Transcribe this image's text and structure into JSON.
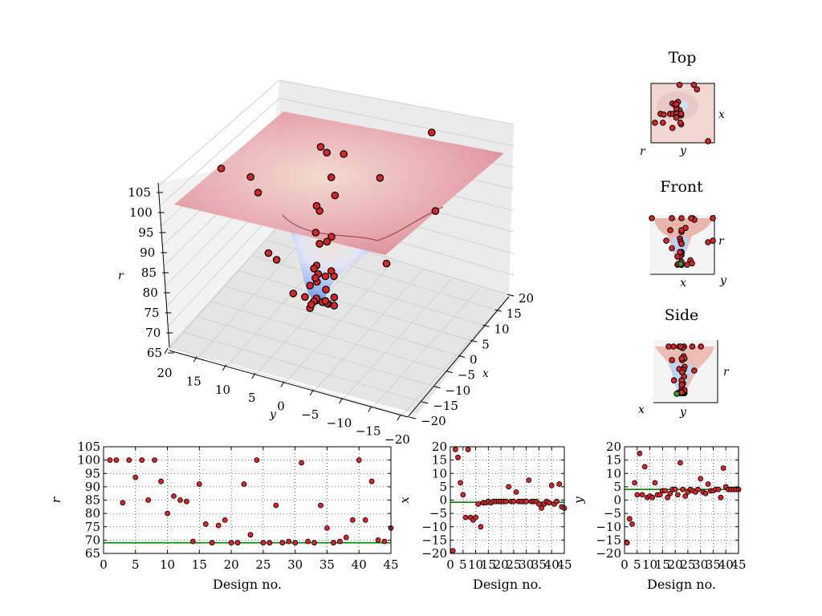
{
  "colors": {
    "point_fill": "#d62728",
    "point_edge": "#000000",
    "best_line": "#008000",
    "best_point": "#2ca02c",
    "plane": "#e8a0a8",
    "surface_high": "#f6d8c8",
    "surface_low": "#7ea4f0",
    "grid": "#bfbfbf",
    "pane": "#f2f2f2"
  },
  "views": {
    "top": {
      "title": "Top",
      "ax1": "x",
      "ax2": "y",
      "ax3": "r"
    },
    "front": {
      "title": "Front",
      "ax1": "r",
      "ax2": "x",
      "ax3": "y"
    },
    "side": {
      "title": "Side",
      "ax1": "r",
      "ax2": "y",
      "ax3": "x"
    }
  },
  "chart_data": [
    {
      "type": "scatter",
      "name": "3d-surface",
      "xlabel": "x",
      "ylabel": "y",
      "zlabel": "r",
      "x_ticks": [
        "−20",
        "−15",
        "−10",
        "−5",
        "0",
        "5",
        "10",
        "15",
        "20"
      ],
      "y_ticks": [
        "20",
        "15",
        "10",
        "5",
        "0",
        "−5",
        "−10",
        "−15",
        "−20"
      ],
      "z_ticks": [
        "105",
        "100",
        "95",
        "90",
        "85",
        "80",
        "75",
        "70",
        "65"
      ],
      "xlim": [
        -20,
        20
      ],
      "ylim": [
        -20,
        20
      ],
      "zlim": [
        65,
        105
      ]
    },
    {
      "type": "scatter",
      "name": "r-vs-design",
      "xlabel": "Design no.",
      "ylabel": "r",
      "xlim": [
        0,
        45
      ],
      "ylim": [
        65,
        105
      ],
      "x_ticks": [
        "0",
        "5",
        "10",
        "15",
        "20",
        "25",
        "30",
        "35",
        "40",
        "45"
      ],
      "y_ticks": [
        "105",
        "100",
        "95",
        "90",
        "85",
        "80",
        "75",
        "70",
        "65"
      ],
      "best_value": 69.0,
      "grid": true,
      "x": [
        1,
        2,
        3,
        4,
        5,
        6,
        7,
        8,
        9,
        10,
        11,
        12,
        13,
        14,
        15,
        16,
        17,
        18,
        19,
        20,
        21,
        22,
        23,
        24,
        25,
        26,
        27,
        28,
        29,
        30,
        31,
        32,
        33,
        34,
        35,
        36,
        37,
        38,
        39,
        40,
        41,
        42,
        43,
        44,
        45
      ],
      "y": [
        100,
        100,
        84,
        100,
        93.5,
        100,
        85,
        100,
        92,
        80,
        86.5,
        85,
        84.5,
        69.5,
        91,
        76,
        69,
        75.5,
        77.5,
        69,
        69,
        91,
        72,
        100,
        69,
        69,
        83,
        69,
        69.5,
        69,
        99,
        69.5,
        69,
        83,
        74.5,
        69,
        69.5,
        71,
        77.5,
        100,
        77.5,
        92,
        70,
        69.5,
        74.5
      ]
    },
    {
      "type": "scatter",
      "name": "x-vs-design",
      "xlabel": "Design no.",
      "ylabel": "x",
      "xlim": [
        0,
        45
      ],
      "ylim": [
        -20,
        20
      ],
      "x_ticks": [
        "0",
        "5",
        "10",
        "15",
        "20",
        "25",
        "30",
        "35",
        "40",
        "45"
      ],
      "y_ticks": [
        "20",
        "15",
        "10",
        "5",
        "0",
        "−5",
        "−10",
        "−15",
        "−20"
      ],
      "best_value": -0.8,
      "grid": true,
      "x": [
        1,
        2,
        3,
        4,
        5,
        6,
        7,
        8,
        9,
        10,
        11,
        12,
        13,
        14,
        15,
        16,
        17,
        18,
        19,
        20,
        21,
        22,
        23,
        24,
        25,
        26,
        27,
        28,
        29,
        30,
        31,
        32,
        33,
        34,
        35,
        36,
        37,
        38,
        39,
        40,
        41,
        42,
        43,
        44,
        45
      ],
      "y": [
        -19,
        19,
        16,
        6.5,
        2,
        -6.5,
        19,
        -6.5,
        -7.5,
        -6.5,
        -1.5,
        -10,
        -1,
        -1,
        -0.5,
        -1,
        -0.5,
        -0.5,
        -0.5,
        -0.5,
        -0.5,
        -0.5,
        5,
        -0.5,
        -0.5,
        3,
        -0.5,
        -0.5,
        -0.5,
        -0.5,
        7.5,
        -0.5,
        -0.5,
        -0.5,
        -1.5,
        -3,
        -1.5,
        -0.5,
        -1,
        5.5,
        -1.5,
        -0.5,
        6,
        -2.5,
        -3
      ]
    },
    {
      "type": "scatter",
      "name": "y-vs-design",
      "xlabel": "Design no.",
      "ylabel": "y",
      "xlim": [
        0,
        45
      ],
      "ylim": [
        -20,
        20
      ],
      "x_ticks": [
        "0",
        "5",
        "10",
        "15",
        "20",
        "25",
        "30",
        "35",
        "40",
        "45"
      ],
      "y_ticks": [
        "20",
        "15",
        "10",
        "5",
        "0",
        "−5",
        "−10",
        "−15",
        "−20"
      ],
      "best_value": 4.0,
      "grid": true,
      "x": [
        1,
        2,
        3,
        4,
        5,
        6,
        7,
        8,
        9,
        10,
        11,
        12,
        13,
        14,
        15,
        16,
        17,
        18,
        19,
        20,
        21,
        22,
        23,
        24,
        25,
        26,
        27,
        28,
        29,
        30,
        31,
        32,
        33,
        34,
        35,
        36,
        37,
        38,
        39,
        40,
        41,
        42,
        43,
        44,
        45
      ],
      "y": [
        -16,
        -7,
        -9,
        6.5,
        2,
        17.5,
        2,
        12.5,
        1,
        1.5,
        1,
        6.5,
        2,
        2,
        3.5,
        3.5,
        1,
        2.5,
        4,
        4,
        2,
        14,
        4,
        1.5,
        3,
        4,
        3.5,
        3,
        4,
        8,
        3,
        2.5,
        6,
        3.5,
        3.5,
        4,
        4,
        1,
        12,
        5,
        4,
        4,
        4,
        4,
        4
      ]
    }
  ]
}
